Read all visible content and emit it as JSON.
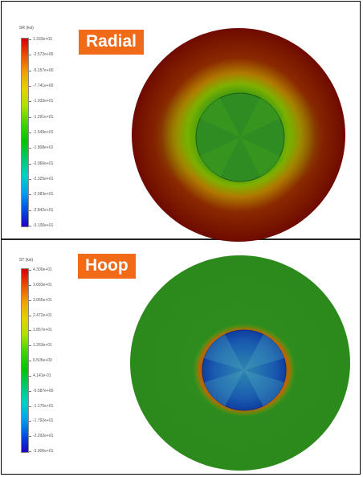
{
  "panels": [
    {
      "id": "radial",
      "label": "Radial",
      "legend_title": "SR (ksi)",
      "ticks": [
        "1.333e+03",
        "-2.572e+00",
        "-5.157e+00",
        "-7.741e+00",
        "-1.033e+01",
        "-1.291e+01",
        "-1.549e+01",
        "-1.808e+01",
        "-2.066e+01",
        "-2.325e+01",
        "-2.583e+01",
        "-2.842e+01",
        "-3.100e+01"
      ]
    },
    {
      "id": "hoop",
      "label": "Hoop",
      "legend_title": "ST (ksi)",
      "ticks": [
        "4.300e+01",
        "3.683e+01",
        "3.065e+01",
        "2.472e+01",
        "1.857e+01",
        "1.263e+01",
        "6.505e+00",
        "4.141e-01",
        "-5.587e+00",
        "-1.175e+01",
        "-1.792e+01",
        "-2.292e+01",
        "-3.006e+01"
      ]
    }
  ],
  "colors": {
    "badge": "#f06a18",
    "radial_outer": "#7a0d00",
    "radial_ring": "#6fa400",
    "radial_core": "#2f8a1e",
    "hoop_outer": "#2f8d1f",
    "hoop_ring": "#d03000",
    "hoop_core": "#1a58a8"
  }
}
